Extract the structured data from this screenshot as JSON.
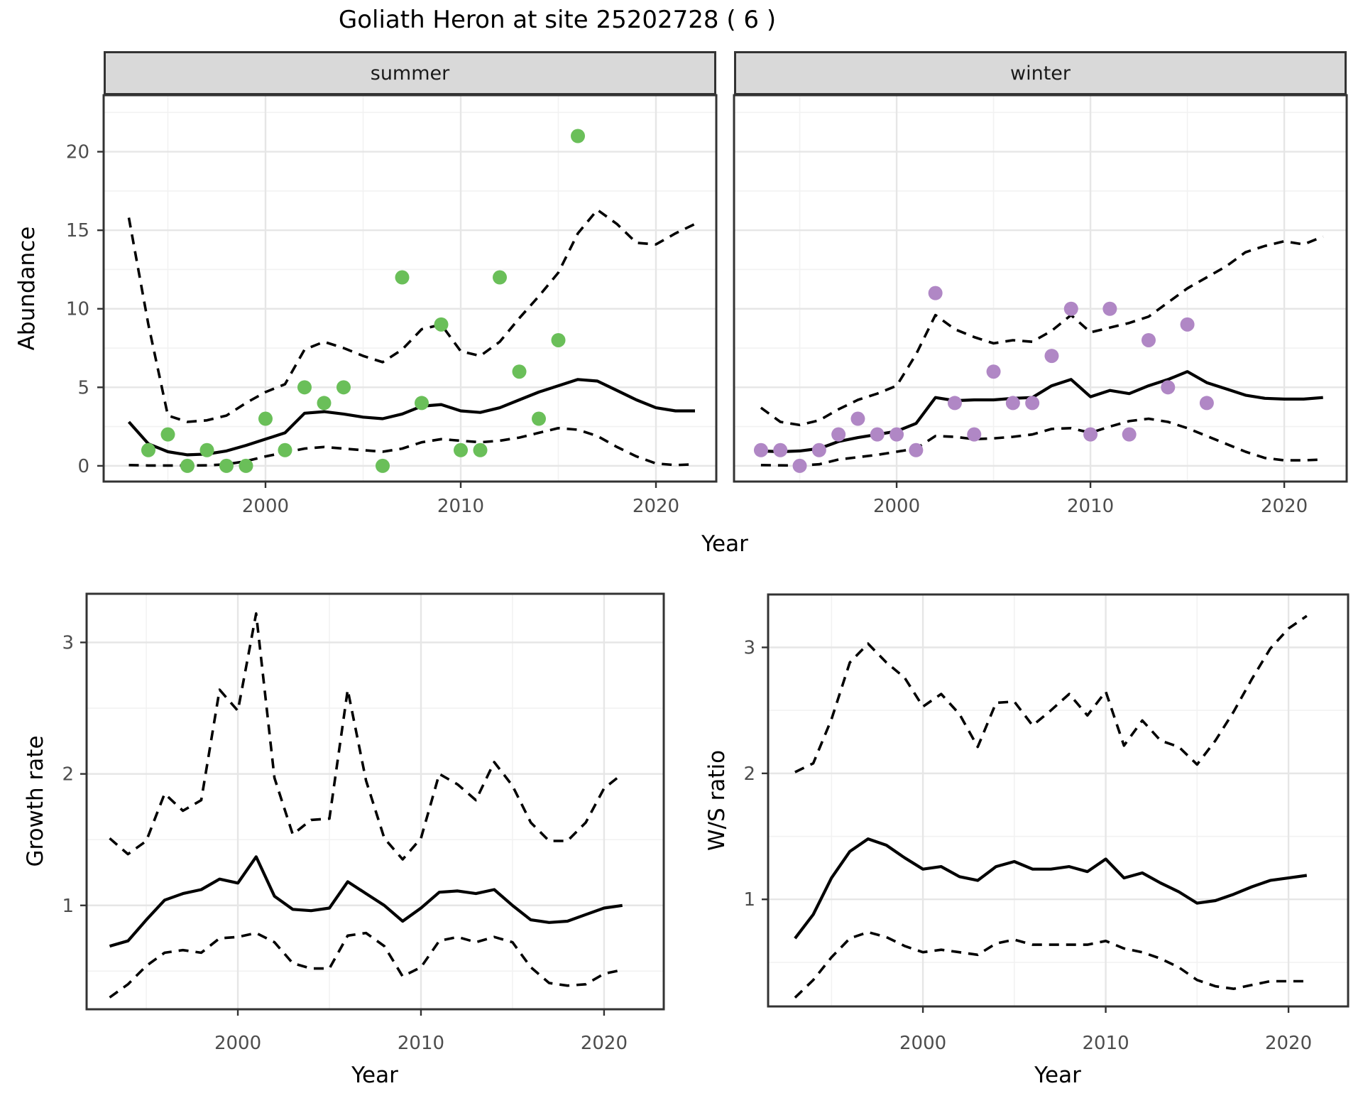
{
  "title": "Goliath Heron at site 25202728 ( 6 )",
  "colors": {
    "summer_point": "#6abf59",
    "winter_point": "#b087c5",
    "line": "#000000",
    "grid_major": "#e6e6e6",
    "grid_minor": "#f2f2f2",
    "strip_bg": "#d9d9d9",
    "panel_border": "#333333",
    "tick_mark": "#333333",
    "tick_label": "#4d4d4d"
  },
  "chart_data": [
    {
      "id": "abundance-summer",
      "type": "scatter",
      "facet_label": "summer",
      "ylabel": "Abundance",
      "xlabel": "Year",
      "xlim": [
        1991.71,
        2023.09
      ],
      "ylim": [
        -1.0,
        23.6
      ],
      "x_ticks": [
        2000,
        2010,
        2020
      ],
      "x_tick_labels": [
        "2000",
        "2010",
        "2020"
      ],
      "x_minor": [
        1995,
        2005,
        2015
      ],
      "y_ticks": [
        0,
        5,
        10,
        15,
        20
      ],
      "y_tick_labels": [
        "0",
        "5",
        "10",
        "15",
        "20"
      ],
      "y_minor": [
        2.5,
        7.5,
        12.5,
        17.5,
        22.5
      ],
      "grid": true,
      "legend": "none",
      "years": [
        1993,
        1994,
        1995,
        1996,
        1997,
        1998,
        1999,
        2000,
        2001,
        2002,
        2003,
        2004,
        2005,
        2006,
        2007,
        2008,
        2009,
        2010,
        2011,
        2012,
        2013,
        2014,
        2015,
        2016,
        2017,
        2018,
        2019,
        2020,
        2021,
        2022
      ],
      "series": [
        {
          "name": "observed-counts",
          "type": "points",
          "color": "#6abf59",
          "data": [
            [
              1994,
              1
            ],
            [
              1995,
              2
            ],
            [
              1996,
              0
            ],
            [
              1997,
              1
            ],
            [
              1998,
              0
            ],
            [
              1999,
              0
            ],
            [
              2000,
              3
            ],
            [
              2001,
              1
            ],
            [
              2002,
              5
            ],
            [
              2003,
              4
            ],
            [
              2004,
              5
            ],
            [
              2006,
              0
            ],
            [
              2007,
              12
            ],
            [
              2008,
              4
            ],
            [
              2009,
              9
            ],
            [
              2010,
              1
            ],
            [
              2011,
              1
            ],
            [
              2012,
              12
            ],
            [
              2013,
              6
            ],
            [
              2014,
              3
            ],
            [
              2015,
              8
            ],
            [
              2016,
              21
            ]
          ]
        },
        {
          "name": "model-mean",
          "type": "line",
          "values": [
            2.8,
            1.4,
            0.9,
            0.7,
            0.75,
            0.95,
            1.3,
            1.7,
            2.1,
            3.35,
            3.45,
            3.3,
            3.1,
            3.0,
            3.3,
            3.8,
            3.9,
            3.5,
            3.4,
            3.7,
            4.2,
            4.7,
            5.1,
            5.5,
            5.4,
            4.8,
            4.2,
            3.7,
            3.5,
            3.5
          ]
        },
        {
          "name": "ci-upper",
          "type": "dashed",
          "values": [
            15.8,
            9.0,
            3.2,
            2.8,
            2.9,
            3.2,
            4.0,
            4.7,
            5.2,
            7.4,
            7.9,
            7.5,
            7.0,
            6.6,
            7.4,
            8.7,
            9.0,
            7.3,
            7.0,
            7.9,
            9.4,
            10.8,
            12.3,
            14.8,
            16.3,
            15.4,
            14.2,
            14.1,
            14.8,
            15.4
          ]
        },
        {
          "name": "ci-lower",
          "type": "dashed",
          "values": [
            0.05,
            0.02,
            0.02,
            0.02,
            0.03,
            0.1,
            0.3,
            0.6,
            0.85,
            1.1,
            1.2,
            1.1,
            1.0,
            0.9,
            1.1,
            1.5,
            1.7,
            1.6,
            1.5,
            1.6,
            1.8,
            2.1,
            2.4,
            2.3,
            1.9,
            1.2,
            0.6,
            0.15,
            0.05,
            0.1
          ]
        }
      ]
    },
    {
      "id": "abundance-winter",
      "type": "scatter",
      "facet_label": "winter",
      "ylabel": "Abundance",
      "xlabel": "Year",
      "xlim": [
        1991.61,
        2023.22
      ],
      "ylim": [
        -1.0,
        23.6
      ],
      "x_ticks": [
        2000,
        2010,
        2020
      ],
      "x_tick_labels": [
        "2000",
        "2010",
        "2020"
      ],
      "x_minor": [
        1995,
        2005,
        2015
      ],
      "y_ticks": [
        0,
        5,
        10,
        15,
        20
      ],
      "y_tick_labels": [
        "0",
        "5",
        "10",
        "15",
        "20"
      ],
      "y_minor": [
        2.5,
        7.5,
        12.5,
        17.5,
        22.5
      ],
      "grid": true,
      "legend": "none",
      "years": [
        1993,
        1994,
        1995,
        1996,
        1997,
        1998,
        1999,
        2000,
        2001,
        2002,
        2003,
        2004,
        2005,
        2006,
        2007,
        2008,
        2009,
        2010,
        2011,
        2012,
        2013,
        2014,
        2015,
        2016,
        2017,
        2018,
        2019,
        2020,
        2021,
        2022
      ],
      "series": [
        {
          "name": "observed-counts",
          "type": "points",
          "color": "#b087c5",
          "data": [
            [
              1993,
              1
            ],
            [
              1994,
              1
            ],
            [
              1995,
              0
            ],
            [
              1996,
              1
            ],
            [
              1997,
              2
            ],
            [
              1998,
              3
            ],
            [
              1999,
              2
            ],
            [
              2000,
              2
            ],
            [
              2001,
              1
            ],
            [
              2002,
              11
            ],
            [
              2003,
              4
            ],
            [
              2004,
              2
            ],
            [
              2005,
              6
            ],
            [
              2006,
              4
            ],
            [
              2007,
              4
            ],
            [
              2008,
              7
            ],
            [
              2009,
              10
            ],
            [
              2010,
              2
            ],
            [
              2011,
              10
            ],
            [
              2012,
              2
            ],
            [
              2013,
              8
            ],
            [
              2014,
              5
            ],
            [
              2015,
              9
            ],
            [
              2016,
              4
            ]
          ]
        },
        {
          "name": "model-mean",
          "type": "line",
          "values": [
            0.95,
            0.9,
            0.95,
            1.1,
            1.55,
            1.8,
            2.0,
            2.2,
            2.7,
            4.35,
            4.15,
            4.2,
            4.2,
            4.3,
            4.35,
            5.1,
            5.5,
            4.4,
            4.8,
            4.6,
            5.1,
            5.5,
            6.0,
            5.3,
            4.9,
            4.5,
            4.3,
            4.25,
            4.25,
            4.35
          ]
        },
        {
          "name": "ci-upper",
          "type": "dashed",
          "values": [
            3.7,
            2.8,
            2.6,
            2.9,
            3.6,
            4.2,
            4.6,
            5.1,
            7.1,
            9.6,
            8.7,
            8.2,
            7.8,
            8.0,
            7.9,
            8.6,
            9.6,
            8.5,
            8.8,
            9.1,
            9.5,
            10.4,
            11.3,
            12.0,
            12.7,
            13.6,
            14.0,
            14.3,
            14.1,
            14.6
          ]
        },
        {
          "name": "ci-lower",
          "type": "dashed",
          "values": [
            0.05,
            0.03,
            0.02,
            0.1,
            0.4,
            0.55,
            0.7,
            0.9,
            1.1,
            1.9,
            1.85,
            1.7,
            1.75,
            1.85,
            2.0,
            2.35,
            2.4,
            2.1,
            2.5,
            2.85,
            3.0,
            2.8,
            2.4,
            1.9,
            1.4,
            0.9,
            0.5,
            0.35,
            0.35,
            0.4
          ]
        }
      ]
    },
    {
      "id": "growth-rate",
      "type": "line",
      "facet_label": "",
      "ylabel": "Growth rate",
      "xlabel": "Year",
      "xlim": [
        1991.74,
        2023.26
      ],
      "ylim": [
        0.21,
        3.37
      ],
      "x_ticks": [
        2000,
        2010,
        2020
      ],
      "x_tick_labels": [
        "2000",
        "2010",
        "2020"
      ],
      "x_minor": [
        1995,
        2005,
        2015
      ],
      "y_ticks": [
        1,
        2,
        3
      ],
      "y_tick_labels": [
        "1",
        "2",
        "3"
      ],
      "y_minor": [
        0.5,
        1.5,
        2.5
      ],
      "grid": true,
      "legend": "none",
      "years": [
        1993,
        1994,
        1995,
        1996,
        1997,
        1998,
        1999,
        2000,
        2001,
        2002,
        2003,
        2004,
        2005,
        2006,
        2007,
        2008,
        2009,
        2010,
        2011,
        2012,
        2013,
        2014,
        2015,
        2016,
        2017,
        2018,
        2019,
        2020,
        2021
      ],
      "series": [
        {
          "name": "model-mean",
          "type": "line",
          "values": [
            0.69,
            0.73,
            0.89,
            1.04,
            1.09,
            1.12,
            1.2,
            1.17,
            1.37,
            1.07,
            0.97,
            0.96,
            0.98,
            1.18,
            1.09,
            1.0,
            0.88,
            0.98,
            1.1,
            1.11,
            1.09,
            1.12,
            1.0,
            0.89,
            0.87,
            0.88,
            0.93,
            0.98,
            1.0
          ]
        },
        {
          "name": "ci-upper",
          "type": "dashed",
          "values": [
            1.51,
            1.39,
            1.49,
            1.85,
            1.72,
            1.8,
            2.64,
            2.48,
            3.22,
            1.97,
            1.54,
            1.65,
            1.66,
            2.64,
            1.95,
            1.51,
            1.35,
            1.51,
            2.0,
            1.92,
            1.8,
            2.09,
            1.91,
            1.63,
            1.49,
            1.49,
            1.63,
            1.89,
            2.0
          ]
        },
        {
          "name": "ci-lower",
          "type": "dashed",
          "values": [
            0.3,
            0.4,
            0.54,
            0.64,
            0.66,
            0.64,
            0.75,
            0.76,
            0.79,
            0.72,
            0.56,
            0.52,
            0.52,
            0.77,
            0.79,
            0.69,
            0.46,
            0.53,
            0.73,
            0.76,
            0.72,
            0.76,
            0.72,
            0.53,
            0.41,
            0.39,
            0.4,
            0.48,
            0.51
          ]
        }
      ]
    },
    {
      "id": "ws-ratio",
      "type": "line",
      "facet_label": "",
      "ylabel": "W/S ratio",
      "xlabel": "Year",
      "xlim": [
        1991.53,
        2023.26
      ],
      "ylim": [
        0.15,
        3.42
      ],
      "x_ticks": [
        2000,
        2010,
        2020
      ],
      "x_tick_labels": [
        "2000",
        "2010",
        "2020"
      ],
      "x_minor": [
        1995,
        2005,
        2015
      ],
      "y_ticks": [
        1,
        2,
        3
      ],
      "y_tick_labels": [
        "1",
        "2",
        "3"
      ],
      "y_minor": [
        0.5,
        1.5,
        2.5
      ],
      "grid": true,
      "legend": "none",
      "years": [
        1993,
        1994,
        1995,
        1996,
        1997,
        1998,
        1999,
        2000,
        2001,
        2002,
        2003,
        2004,
        2005,
        2006,
        2007,
        2008,
        2009,
        2010,
        2011,
        2012,
        2013,
        2014,
        2015,
        2016,
        2017,
        2018,
        2019,
        2020,
        2021
      ],
      "series": [
        {
          "name": "model-mean",
          "type": "line",
          "values": [
            0.69,
            0.88,
            1.17,
            1.38,
            1.48,
            1.43,
            1.33,
            1.24,
            1.26,
            1.18,
            1.15,
            1.26,
            1.3,
            1.24,
            1.24,
            1.26,
            1.22,
            1.32,
            1.17,
            1.21,
            1.13,
            1.06,
            0.97,
            0.99,
            1.04,
            1.1,
            1.15,
            1.17,
            1.19
          ]
        },
        {
          "name": "ci-upper",
          "type": "dashed",
          "values": [
            2.01,
            2.08,
            2.43,
            2.88,
            3.03,
            2.88,
            2.76,
            2.53,
            2.63,
            2.47,
            2.21,
            2.56,
            2.57,
            2.38,
            2.5,
            2.63,
            2.46,
            2.65,
            2.22,
            2.42,
            2.26,
            2.21,
            2.07,
            2.26,
            2.49,
            2.75,
            2.99,
            3.15,
            3.25
          ]
        },
        {
          "name": "ci-lower",
          "type": "dashed",
          "values": [
            0.22,
            0.36,
            0.54,
            0.69,
            0.74,
            0.7,
            0.63,
            0.58,
            0.6,
            0.58,
            0.56,
            0.65,
            0.68,
            0.64,
            0.64,
            0.64,
            0.64,
            0.67,
            0.61,
            0.58,
            0.53,
            0.46,
            0.36,
            0.31,
            0.29,
            0.32,
            0.35,
            0.35,
            0.35
          ]
        }
      ]
    }
  ]
}
